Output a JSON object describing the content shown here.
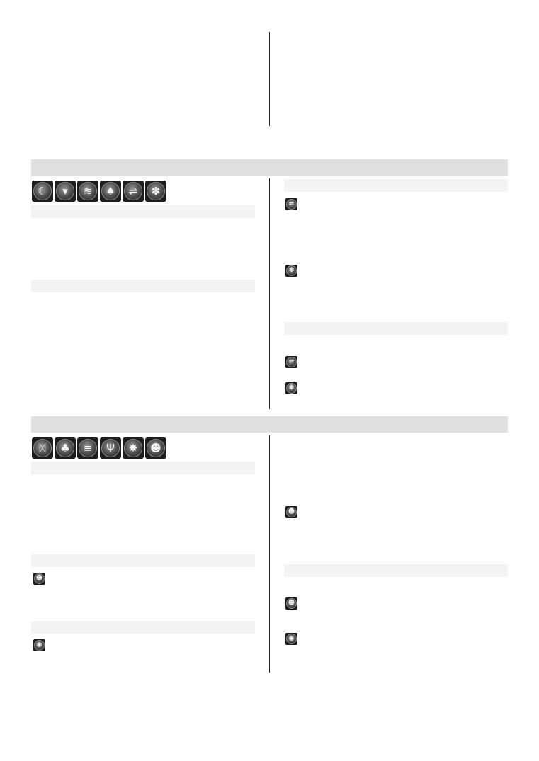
{
  "sections": [
    {
      "id": "section-1",
      "icons": [
        "moon-icon",
        "fox-icon",
        "flames-icon",
        "hooded-figure-icon",
        "whip-icon",
        "paw-icon"
      ],
      "right_items": [
        "whip-icon",
        "paw-icon",
        "whip-icon",
        "paw-icon"
      ]
    },
    {
      "id": "section-2",
      "icons": [
        "rune-icon",
        "pine-tree-icon",
        "claw-icon",
        "dead-tree-icon",
        "spider-icon",
        "skull-icon"
      ],
      "left_items": [
        "skull-icon",
        "vortex-icon"
      ],
      "right_items": [
        "skull-icon",
        "skull-icon",
        "vortex-icon"
      ]
    }
  ],
  "glyphs": {
    "moon-icon": "☾",
    "fox-icon": "▾",
    "flames-icon": "≋",
    "hooded-figure-icon": "♠",
    "whip-icon": "⇌",
    "paw-icon": "✽",
    "rune-icon": "ᛞ",
    "pine-tree-icon": "♣",
    "claw-icon": "≡",
    "dead-tree-icon": "Ψ",
    "spider-icon": "✸",
    "skull-icon": "☻",
    "vortex-icon": "◉"
  }
}
